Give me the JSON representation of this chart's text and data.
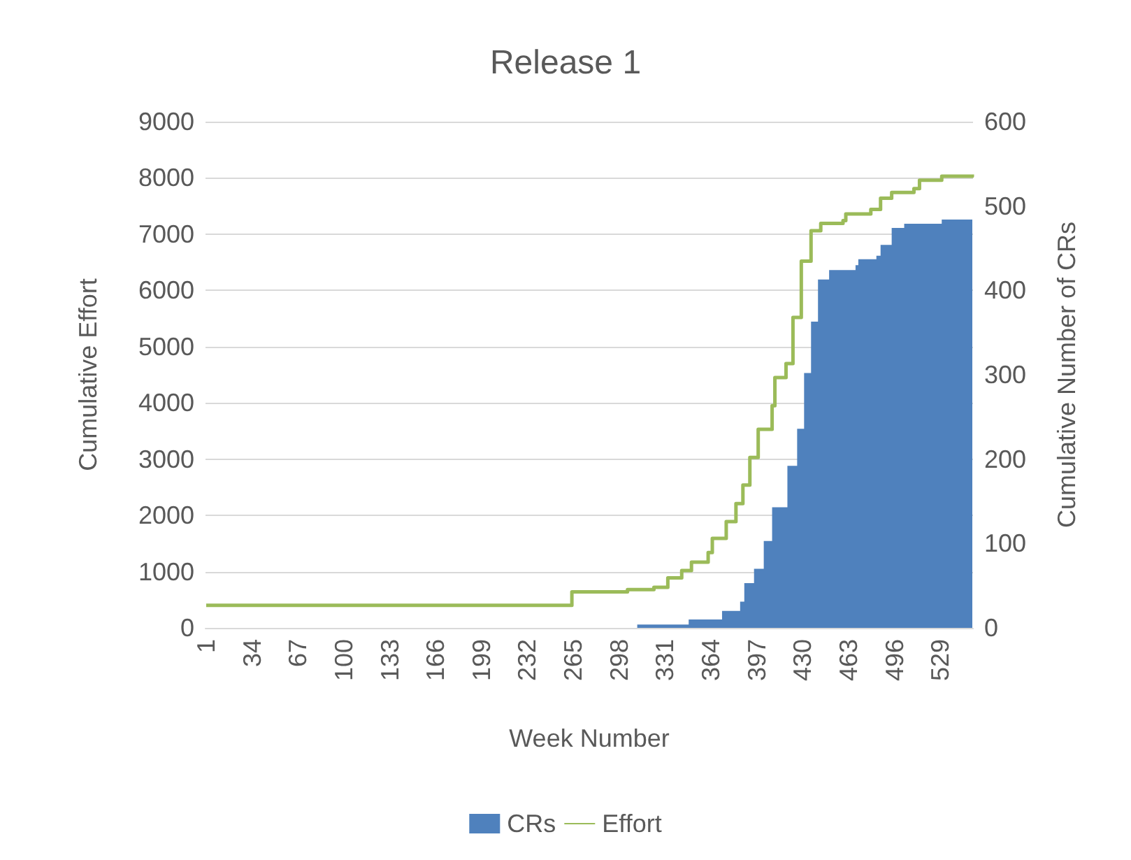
{
  "chart_data": {
    "type": "area",
    "title": "Release 1",
    "xlabel": "Week Number",
    "ylabel": "Cumulative Effort",
    "y2label": "Cumulative Number of CRs",
    "xlim": [
      0.5,
      552.5
    ],
    "xticks": [
      1,
      34,
      67,
      100,
      133,
      166,
      199,
      232,
      265,
      298,
      331,
      364,
      397,
      430,
      463,
      496,
      529
    ],
    "ylim": [
      0,
      9000
    ],
    "yticks": [
      0,
      1000,
      2000,
      3000,
      4000,
      5000,
      6000,
      7000,
      8000,
      9000
    ],
    "y2lim": [
      0,
      600
    ],
    "y2ticks": [
      0,
      100,
      200,
      300,
      400,
      500,
      600
    ],
    "grid": "y",
    "legend": "bottom",
    "series": [
      {
        "name": "CRs",
        "axis": "y2",
        "color": "#4f81bd",
        "x": [
          1,
          311,
          348,
          372,
          385,
          388,
          395,
          402,
          408,
          419,
          426,
          431,
          436,
          441,
          449,
          468,
          470,
          483,
          486,
          494,
          503,
          530,
          552
        ],
        "values": [
          0,
          4,
          10,
          20,
          31,
          53,
          70,
          103,
          143,
          192,
          236,
          302,
          363,
          413,
          424,
          430,
          437,
          441,
          454,
          474,
          479,
          484,
          485
        ]
      },
      {
        "name": "Effort",
        "type": "step",
        "axis": "y",
        "color": "#9bbb59",
        "x": [
          1,
          264,
          304,
          323,
          333,
          343,
          350,
          362,
          365,
          375,
          382,
          387,
          392,
          398,
          408,
          410,
          418,
          423,
          429,
          436,
          443,
          459,
          461,
          479,
          486,
          494,
          510,
          514,
          530,
          552
        ],
        "values": [
          400,
          640,
          680,
          720,
          890,
          1020,
          1170,
          1340,
          1590,
          1890,
          2210,
          2540,
          3030,
          3530,
          3950,
          4450,
          4700,
          5520,
          6520,
          7060,
          7190,
          7240,
          7360,
          7440,
          7640,
          7740,
          7810,
          7960,
          8030,
          8060
        ]
      }
    ]
  }
}
